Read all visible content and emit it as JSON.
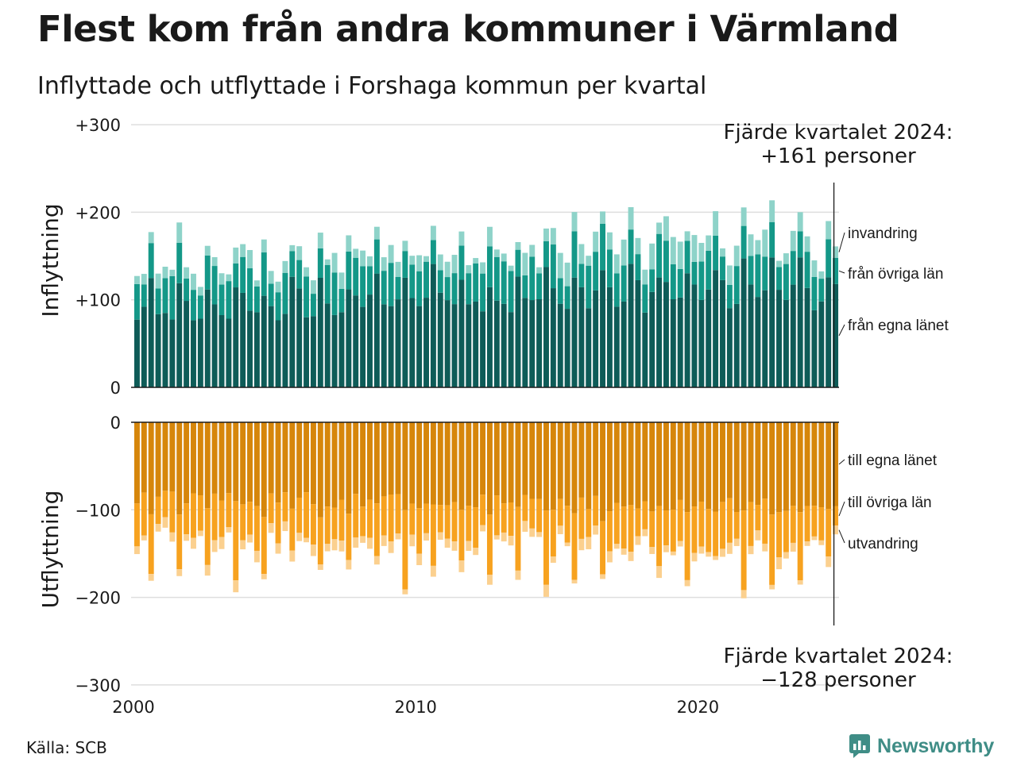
{
  "page": {
    "title": "Flest kom från andra kommuner i Värmland",
    "subtitle": "Inflyttade och utflyttade i Forshaga kommun per kvartal",
    "source": "Källa: SCB",
    "brand": "Newsworthy",
    "brand_icon": "newsworthy-logo-icon"
  },
  "chart_data": {
    "type": "bar",
    "stacked": true,
    "x_axis": {
      "type": "quarter",
      "start": "2000 Q1",
      "end": "2024 Q4",
      "ticks": [
        "2000",
        "2010",
        "2020"
      ]
    },
    "panels": [
      {
        "name": "inflyttning",
        "ylabel": "Inflyttning",
        "ylim": [
          0,
          300
        ],
        "ticks": [
          "0",
          "+100",
          "+200",
          "+300"
        ],
        "colors": [
          "#0e5c58",
          "#149888",
          "#8ed3c9"
        ],
        "series_names": [
          "från egna länet",
          "från övriga län",
          "invandring"
        ],
        "latest_note": [
          "Fjärde kvartalet 2024:",
          "+161 personer"
        ]
      },
      {
        "name": "utflyttning",
        "ylabel": "Utflyttning",
        "ylim": [
          -300,
          0
        ],
        "ticks": [
          "0",
          "−100",
          "−200",
          "−300"
        ],
        "colors": [
          "#d6860b",
          "#f7a21f",
          "#fbd08f"
        ],
        "series_names": [
          "till egna länet",
          "till övriga län",
          "utvandring"
        ],
        "latest_note": [
          "Fjärde kvartalet 2024:",
          "−128 personer"
        ]
      }
    ]
  }
}
